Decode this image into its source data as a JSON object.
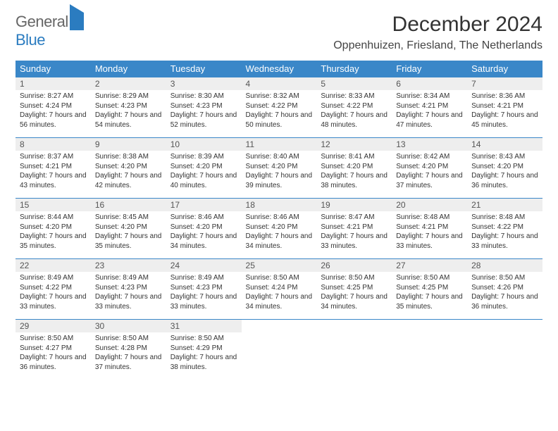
{
  "logo": {
    "part1": "General",
    "part2": "Blue"
  },
  "title": "December 2024",
  "location": "Oppenhuizen, Friesland, The Netherlands",
  "colors": {
    "header_bg": "#3a87c8",
    "header_text": "#ffffff",
    "daynum_bg": "#eeeeee",
    "cell_border": "#3a87c8",
    "logo_accent": "#2b7cc0"
  },
  "weekdays": [
    "Sunday",
    "Monday",
    "Tuesday",
    "Wednesday",
    "Thursday",
    "Friday",
    "Saturday"
  ],
  "weeks": [
    [
      {
        "n": "1",
        "sr": "8:27 AM",
        "ss": "4:24 PM",
        "dl": "7 hours and 56 minutes."
      },
      {
        "n": "2",
        "sr": "8:29 AM",
        "ss": "4:23 PM",
        "dl": "7 hours and 54 minutes."
      },
      {
        "n": "3",
        "sr": "8:30 AM",
        "ss": "4:23 PM",
        "dl": "7 hours and 52 minutes."
      },
      {
        "n": "4",
        "sr": "8:32 AM",
        "ss": "4:22 PM",
        "dl": "7 hours and 50 minutes."
      },
      {
        "n": "5",
        "sr": "8:33 AM",
        "ss": "4:22 PM",
        "dl": "7 hours and 48 minutes."
      },
      {
        "n": "6",
        "sr": "8:34 AM",
        "ss": "4:21 PM",
        "dl": "7 hours and 47 minutes."
      },
      {
        "n": "7",
        "sr": "8:36 AM",
        "ss": "4:21 PM",
        "dl": "7 hours and 45 minutes."
      }
    ],
    [
      {
        "n": "8",
        "sr": "8:37 AM",
        "ss": "4:21 PM",
        "dl": "7 hours and 43 minutes."
      },
      {
        "n": "9",
        "sr": "8:38 AM",
        "ss": "4:20 PM",
        "dl": "7 hours and 42 minutes."
      },
      {
        "n": "10",
        "sr": "8:39 AM",
        "ss": "4:20 PM",
        "dl": "7 hours and 40 minutes."
      },
      {
        "n": "11",
        "sr": "8:40 AM",
        "ss": "4:20 PM",
        "dl": "7 hours and 39 minutes."
      },
      {
        "n": "12",
        "sr": "8:41 AM",
        "ss": "4:20 PM",
        "dl": "7 hours and 38 minutes."
      },
      {
        "n": "13",
        "sr": "8:42 AM",
        "ss": "4:20 PM",
        "dl": "7 hours and 37 minutes."
      },
      {
        "n": "14",
        "sr": "8:43 AM",
        "ss": "4:20 PM",
        "dl": "7 hours and 36 minutes."
      }
    ],
    [
      {
        "n": "15",
        "sr": "8:44 AM",
        "ss": "4:20 PM",
        "dl": "7 hours and 35 minutes."
      },
      {
        "n": "16",
        "sr": "8:45 AM",
        "ss": "4:20 PM",
        "dl": "7 hours and 35 minutes."
      },
      {
        "n": "17",
        "sr": "8:46 AM",
        "ss": "4:20 PM",
        "dl": "7 hours and 34 minutes."
      },
      {
        "n": "18",
        "sr": "8:46 AM",
        "ss": "4:20 PM",
        "dl": "7 hours and 34 minutes."
      },
      {
        "n": "19",
        "sr": "8:47 AM",
        "ss": "4:21 PM",
        "dl": "7 hours and 33 minutes."
      },
      {
        "n": "20",
        "sr": "8:48 AM",
        "ss": "4:21 PM",
        "dl": "7 hours and 33 minutes."
      },
      {
        "n": "21",
        "sr": "8:48 AM",
        "ss": "4:22 PM",
        "dl": "7 hours and 33 minutes."
      }
    ],
    [
      {
        "n": "22",
        "sr": "8:49 AM",
        "ss": "4:22 PM",
        "dl": "7 hours and 33 minutes."
      },
      {
        "n": "23",
        "sr": "8:49 AM",
        "ss": "4:23 PM",
        "dl": "7 hours and 33 minutes."
      },
      {
        "n": "24",
        "sr": "8:49 AM",
        "ss": "4:23 PM",
        "dl": "7 hours and 33 minutes."
      },
      {
        "n": "25",
        "sr": "8:50 AM",
        "ss": "4:24 PM",
        "dl": "7 hours and 34 minutes."
      },
      {
        "n": "26",
        "sr": "8:50 AM",
        "ss": "4:25 PM",
        "dl": "7 hours and 34 minutes."
      },
      {
        "n": "27",
        "sr": "8:50 AM",
        "ss": "4:25 PM",
        "dl": "7 hours and 35 minutes."
      },
      {
        "n": "28",
        "sr": "8:50 AM",
        "ss": "4:26 PM",
        "dl": "7 hours and 36 minutes."
      }
    ],
    [
      {
        "n": "29",
        "sr": "8:50 AM",
        "ss": "4:27 PM",
        "dl": "7 hours and 36 minutes."
      },
      {
        "n": "30",
        "sr": "8:50 AM",
        "ss": "4:28 PM",
        "dl": "7 hours and 37 minutes."
      },
      {
        "n": "31",
        "sr": "8:50 AM",
        "ss": "4:29 PM",
        "dl": "7 hours and 38 minutes."
      },
      null,
      null,
      null,
      null
    ]
  ],
  "labels": {
    "sunrise": "Sunrise:",
    "sunset": "Sunset:",
    "daylight": "Daylight:"
  }
}
